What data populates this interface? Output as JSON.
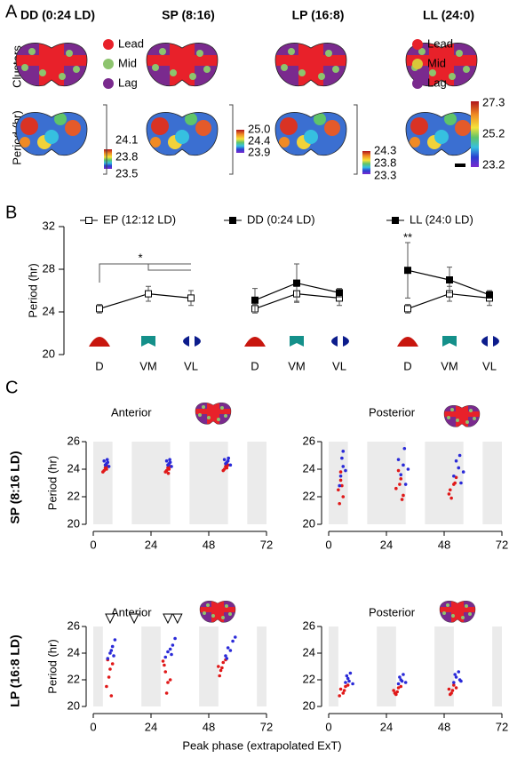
{
  "panel_labels": [
    "A",
    "B",
    "C"
  ],
  "panel_a": {
    "columns": [
      "DD (0:24 LD)",
      "SP (8:16)",
      "LP (16:8)",
      "LL (24:0)"
    ],
    "rows": [
      "Clusters",
      "Period (hr)"
    ],
    "legends": [
      {
        "items": [
          {
            "label": "Lead",
            "color": "#e8212a"
          },
          {
            "label": "Mid",
            "color": "#8dc46e"
          },
          {
            "label": "Lag",
            "color": "#7a2a8e"
          }
        ]
      },
      {
        "items": [
          {
            "label": "Lead",
            "color": "#e8212a"
          },
          {
            "label": "Mid",
            "color": "#d8c83a"
          },
          {
            "label": "Lag",
            "color": "#7a2a8e"
          }
        ]
      }
    ],
    "colorbars": [
      [
        "24.1",
        "23.8",
        "23.5"
      ],
      [
        "25.0",
        "24.4",
        "23.9"
      ],
      [
        "24.3",
        "23.8",
        "23.3"
      ],
      [
        "27.3",
        "25.2",
        "23.2"
      ]
    ]
  },
  "panel_c": {
    "xlabel": "Peak phase (extrapolated ExT)"
  },
  "chart_data": [
    {
      "type": "line",
      "ylabel": "Period  (hr)",
      "ylim": [
        20,
        32
      ],
      "yticks": [
        20,
        24,
        28,
        32
      ],
      "categories": [
        "D",
        "VM",
        "VL"
      ],
      "annotation": "*",
      "series": [
        {
          "name": "EP (12:12 LD)",
          "color": "#000000",
          "filled": false,
          "values": [
            24.3,
            25.7,
            25.3
          ],
          "errors": [
            0.4,
            0.7,
            0.7
          ]
        }
      ]
    },
    {
      "type": "line",
      "categories": [
        "D",
        "VM",
        "VL"
      ],
      "series": [
        {
          "color": "#000000",
          "filled": false,
          "values": [
            24.3,
            25.7,
            25.3
          ],
          "errors": [
            0.4,
            0.7,
            0.7
          ]
        },
        {
          "name": "DD (0:24 LD)",
          "color": "#000000",
          "filled": true,
          "values": [
            25.1,
            26.7,
            25.8
          ],
          "errors": [
            1.1,
            1.8,
            0.4
          ]
        }
      ]
    },
    {
      "type": "line",
      "categories": [
        "D",
        "VM",
        "VL"
      ],
      "annotation": "**",
      "series": [
        {
          "color": "#000000",
          "filled": false,
          "values": [
            24.3,
            25.7,
            25.3
          ],
          "errors": [
            0.4,
            0.7,
            0.7
          ]
        },
        {
          "name": "LL (24:0 LD)",
          "color": "#000000",
          "filled": true,
          "values": [
            27.9,
            27.0,
            25.6
          ],
          "errors": [
            2.6,
            1.2,
            0.3
          ]
        }
      ]
    },
    {
      "type": "scatter",
      "title": "Anterior",
      "title_color": "#e5786f",
      "row_label": "SP (8:16 LD)",
      "ylabel": "Period  (hr)",
      "xlim": [
        0,
        72
      ],
      "xticks": [
        0,
        24,
        48,
        72
      ],
      "ylim": [
        20,
        26
      ],
      "yticks": [
        20,
        22,
        24,
        26
      ],
      "shaded_x": [
        [
          0,
          8
        ],
        [
          16,
          32
        ],
        [
          40,
          56
        ],
        [
          64,
          72
        ]
      ],
      "series": [
        {
          "color": "#e01818",
          "x": [
            4.5,
            5,
            5.5,
            4,
            6,
            5.2,
            30.5,
            31,
            31.5,
            30,
            32,
            31.2,
            54.5,
            55,
            55.5,
            54,
            56,
            55.3
          ],
          "values": [
            23.9,
            24.1,
            24.0,
            23.8,
            24.2,
            24.3,
            23.9,
            24.1,
            24.0,
            23.8,
            24.2,
            23.7,
            24.0,
            24.2,
            24.1,
            23.9,
            24.3,
            24.4
          ]
        },
        {
          "color": "#2a2ad8",
          "x": [
            5,
            6,
            4.5,
            5.5,
            6.5,
            5.8,
            31,
            32,
            30.5,
            31.5,
            32.5,
            31.8,
            55,
            56,
            54.5,
            55.5,
            57,
            56.2
          ],
          "values": [
            24.3,
            24.5,
            24.6,
            24.4,
            24.2,
            24.7,
            24.3,
            24.5,
            24.6,
            24.4,
            24.2,
            24.7,
            24.4,
            24.6,
            24.7,
            24.5,
            24.3,
            24.8
          ]
        }
      ]
    },
    {
      "type": "scatter",
      "title": "Posterior",
      "title_color": "#7b6fe0",
      "xlim": [
        0,
        72
      ],
      "xticks": [
        0,
        24,
        48,
        72
      ],
      "ylim": [
        20,
        26
      ],
      "yticks": [
        20,
        22,
        24,
        26
      ],
      "shaded_x": [
        [
          0,
          8
        ],
        [
          16,
          32
        ],
        [
          40,
          56
        ],
        [
          64,
          72
        ]
      ],
      "series": [
        {
          "color": "#e01818",
          "x": [
            4,
            5,
            6,
            5,
            4.5,
            5.5,
            28,
            30,
            31,
            29,
            30.5,
            29.5,
            50,
            52,
            51,
            53,
            50.5,
            52.5
          ],
          "values": [
            22.5,
            23.2,
            22.0,
            23.8,
            21.5,
            22.8,
            22.6,
            23.3,
            22.1,
            23.9,
            21.8,
            22.9,
            22.2,
            22.9,
            21.9,
            23.4,
            22.5,
            23.0
          ]
        },
        {
          "color": "#2a2ad8",
          "x": [
            5,
            6,
            4.5,
            5.5,
            7,
            6,
            30,
            31,
            32,
            29,
            33,
            31.5,
            52,
            54,
            55,
            53,
            56,
            54.5
          ],
          "values": [
            23.5,
            24.2,
            22.8,
            24.8,
            23.9,
            25.3,
            23.6,
            24.3,
            22.9,
            24.7,
            24.0,
            25.5,
            23.5,
            24.1,
            23.0,
            24.6,
            23.8,
            25.0
          ]
        }
      ]
    },
    {
      "type": "scatter",
      "title": "Anterior",
      "title_color": "#e5786f",
      "row_label": "LP (16:8 LD)",
      "ylabel": "Period  (hr)",
      "xlim": [
        0,
        72
      ],
      "xticks": [
        0,
        24,
        48,
        72
      ],
      "ylim": [
        20,
        26
      ],
      "yticks": [
        20,
        22,
        24,
        26
      ],
      "shaded_x": [
        [
          0,
          4
        ],
        [
          20,
          28
        ],
        [
          44,
          52
        ],
        [
          68,
          72
        ]
      ],
      "markers_x": [
        7,
        17,
        31,
        35
      ],
      "series": [
        {
          "color": "#e01818",
          "x": [
            6,
            7,
            5.5,
            8,
            6.5,
            7.5,
            29,
            30,
            31,
            29.5,
            32,
            30.5,
            52,
            53,
            54,
            52.5,
            55,
            53.5
          ],
          "values": [
            23.5,
            22.8,
            21.5,
            23.2,
            22.2,
            20.8,
            23.4,
            22.6,
            21.8,
            23.1,
            22.0,
            21.0,
            23.0,
            22.7,
            23.3,
            22.3,
            23.5,
            22.9
          ]
        },
        {
          "color": "#2a2ad8",
          "x": [
            7,
            8,
            6,
            9,
            7.5,
            8.5,
            31,
            33,
            30,
            34,
            32,
            32.5,
            55,
            56,
            58,
            57,
            59,
            55.5
          ],
          "values": [
            24.0,
            24.5,
            23.6,
            25.0,
            24.2,
            23.8,
            24.1,
            24.6,
            23.7,
            25.1,
            24.3,
            23.9,
            23.8,
            24.4,
            24.9,
            24.2,
            25.2,
            23.6
          ]
        }
      ]
    },
    {
      "type": "scatter",
      "title": "Posterior",
      "title_color": "#7b6fe0",
      "xlim": [
        0,
        72
      ],
      "xticks": [
        0,
        24,
        48,
        72
      ],
      "ylim": [
        20,
        26
      ],
      "yticks": [
        20,
        22,
        24,
        26
      ],
      "shaded_x": [
        [
          0,
          4
        ],
        [
          20,
          28
        ],
        [
          44,
          52
        ],
        [
          68,
          72
        ]
      ],
      "series": [
        {
          "color": "#e01818",
          "x": [
            5,
            6,
            7,
            4.5,
            6.5,
            8,
            27,
            28,
            29,
            27.5,
            30,
            28.5,
            50,
            51,
            52,
            50.5,
            53,
            51.5
          ],
          "values": [
            21.3,
            21.0,
            21.5,
            20.8,
            21.2,
            21.6,
            21.2,
            20.9,
            21.4,
            21.0,
            21.5,
            21.1,
            21.3,
            21.0,
            21.6,
            20.9,
            21.4,
            21.2
          ]
        },
        {
          "color": "#2a2ad8",
          "x": [
            7,
            8,
            9,
            10,
            7.5,
            8.5,
            29,
            30,
            31,
            32,
            29.5,
            30.5,
            52,
            53,
            54,
            55,
            52.5,
            54.5
          ],
          "values": [
            21.8,
            22.1,
            22.5,
            21.7,
            22.3,
            21.9,
            21.7,
            22.0,
            22.4,
            21.8,
            22.2,
            21.9,
            21.8,
            22.2,
            22.6,
            21.9,
            22.4,
            22.0
          ]
        }
      ]
    }
  ]
}
